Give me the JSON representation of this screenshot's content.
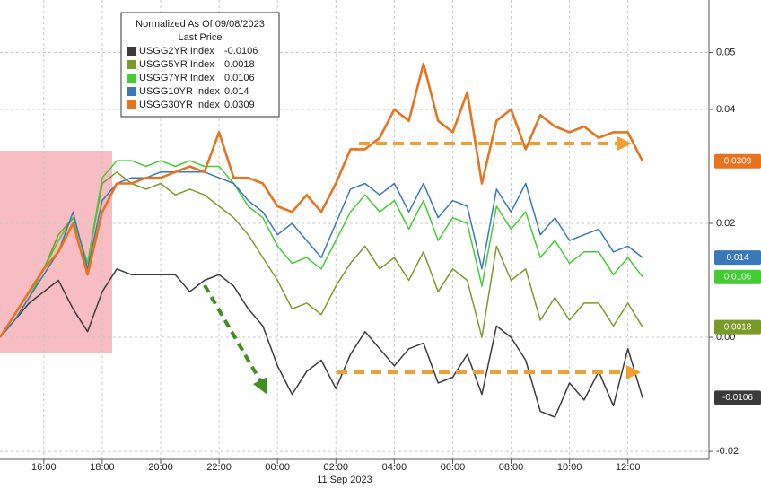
{
  "chart_data": {
    "type": "line",
    "legend_title": "Normalized As Of 09/08/2023",
    "legend_subtitle": "Last Price",
    "date_label": "11 Sep 2023",
    "x": [
      "14:30",
      "15:00",
      "15:30",
      "16:00",
      "16:30",
      "17:00",
      "17:30",
      "18:00",
      "18:30",
      "19:00",
      "19:30",
      "20:00",
      "20:30",
      "21:00",
      "21:30",
      "22:00",
      "22:30",
      "23:00",
      "23:30",
      "00:00",
      "00:30",
      "01:00",
      "01:30",
      "02:00",
      "02:30",
      "03:00",
      "03:30",
      "04:00",
      "04:30",
      "05:00",
      "05:30",
      "06:00",
      "06:30",
      "07:00",
      "07:30",
      "08:00",
      "08:30",
      "09:00",
      "09:30",
      "10:00",
      "10:30",
      "11:00",
      "11:30",
      "12:00",
      "12:30"
    ],
    "xticks": [
      "16:00",
      "18:00",
      "20:00",
      "22:00",
      "00:00",
      "02:00",
      "04:00",
      "06:00",
      "08:00",
      "10:00",
      "12:00"
    ],
    "ylim": [
      -0.0214,
      0.0592
    ],
    "yticks": [
      -0.02,
      {
        "value": 0,
        "label": "0.00"
      },
      0.02,
      0.04,
      0.05
    ],
    "grid": true,
    "series": [
      {
        "name": "USGG2YR Index",
        "last": -0.0106,
        "color": "#3a3a3a",
        "values": [
          0.0,
          0.003,
          0.006,
          0.008,
          0.01,
          0.005,
          0.001,
          0.008,
          0.012,
          0.011,
          0.011,
          0.011,
          0.011,
          0.008,
          0.01,
          0.011,
          0.009,
          0.005,
          0.002,
          -0.005,
          -0.01,
          -0.006,
          -0.004,
          -0.009,
          -0.003,
          0.001,
          -0.002,
          -0.005,
          -0.002,
          -0.001,
          -0.008,
          -0.007,
          -0.003,
          -0.01,
          0.002,
          0.0,
          -0.004,
          -0.013,
          -0.014,
          -0.008,
          -0.011,
          -0.006,
          -0.012,
          -0.002,
          -0.0106
        ]
      },
      {
        "name": "USGG5YR Index",
        "last": 0.0018,
        "color": "#7a9a2a",
        "values": [
          0.0,
          0.003,
          0.007,
          0.012,
          0.018,
          0.021,
          0.013,
          0.027,
          0.029,
          0.027,
          0.026,
          0.027,
          0.025,
          0.026,
          0.025,
          0.023,
          0.021,
          0.018,
          0.014,
          0.01,
          0.005,
          0.006,
          0.004,
          0.009,
          0.013,
          0.016,
          0.012,
          0.014,
          0.01,
          0.015,
          0.008,
          0.012,
          0.01,
          0.0,
          0.016,
          0.01,
          0.012,
          0.003,
          0.007,
          0.003,
          0.006,
          0.006,
          0.002,
          0.006,
          0.0018
        ]
      },
      {
        "name": "USGG7YR Index",
        "last": 0.0106,
        "color": "#44cc33",
        "values": [
          0.0,
          0.003,
          0.007,
          0.012,
          0.017,
          0.021,
          0.013,
          0.028,
          0.031,
          0.031,
          0.03,
          0.031,
          0.03,
          0.031,
          0.03,
          0.03,
          0.027,
          0.023,
          0.021,
          0.016,
          0.013,
          0.014,
          0.012,
          0.017,
          0.022,
          0.025,
          0.022,
          0.024,
          0.019,
          0.024,
          0.017,
          0.021,
          0.02,
          0.009,
          0.023,
          0.019,
          0.022,
          0.014,
          0.017,
          0.013,
          0.015,
          0.015,
          0.011,
          0.014,
          0.0106
        ]
      },
      {
        "name": "USGG10YR Index",
        "last": 0.014,
        "color": "#3a78b8",
        "values": [
          0.0,
          0.003,
          0.007,
          0.011,
          0.015,
          0.022,
          0.012,
          0.024,
          0.027,
          0.028,
          0.028,
          0.029,
          0.029,
          0.029,
          0.029,
          0.028,
          0.027,
          0.024,
          0.022,
          0.018,
          0.02,
          0.017,
          0.014,
          0.02,
          0.026,
          0.027,
          0.025,
          0.027,
          0.022,
          0.027,
          0.021,
          0.024,
          0.023,
          0.012,
          0.026,
          0.022,
          0.027,
          0.018,
          0.021,
          0.017,
          0.018,
          0.019,
          0.015,
          0.016,
          0.014
        ]
      },
      {
        "name": "USGG30YR Index",
        "last": 0.0309,
        "color": "#e8731e",
        "values": [
          0.0,
          0.004,
          0.008,
          0.012,
          0.015,
          0.02,
          0.011,
          0.022,
          0.027,
          0.027,
          0.028,
          0.028,
          0.029,
          0.03,
          0.029,
          0.036,
          0.028,
          0.028,
          0.027,
          0.023,
          0.022,
          0.025,
          0.022,
          0.027,
          0.033,
          0.033,
          0.035,
          0.04,
          0.038,
          0.048,
          0.038,
          0.036,
          0.043,
          0.027,
          0.038,
          0.04,
          0.033,
          0.039,
          0.037,
          0.036,
          0.037,
          0.035,
          0.036,
          0.036,
          0.0309
        ]
      }
    ]
  }
}
